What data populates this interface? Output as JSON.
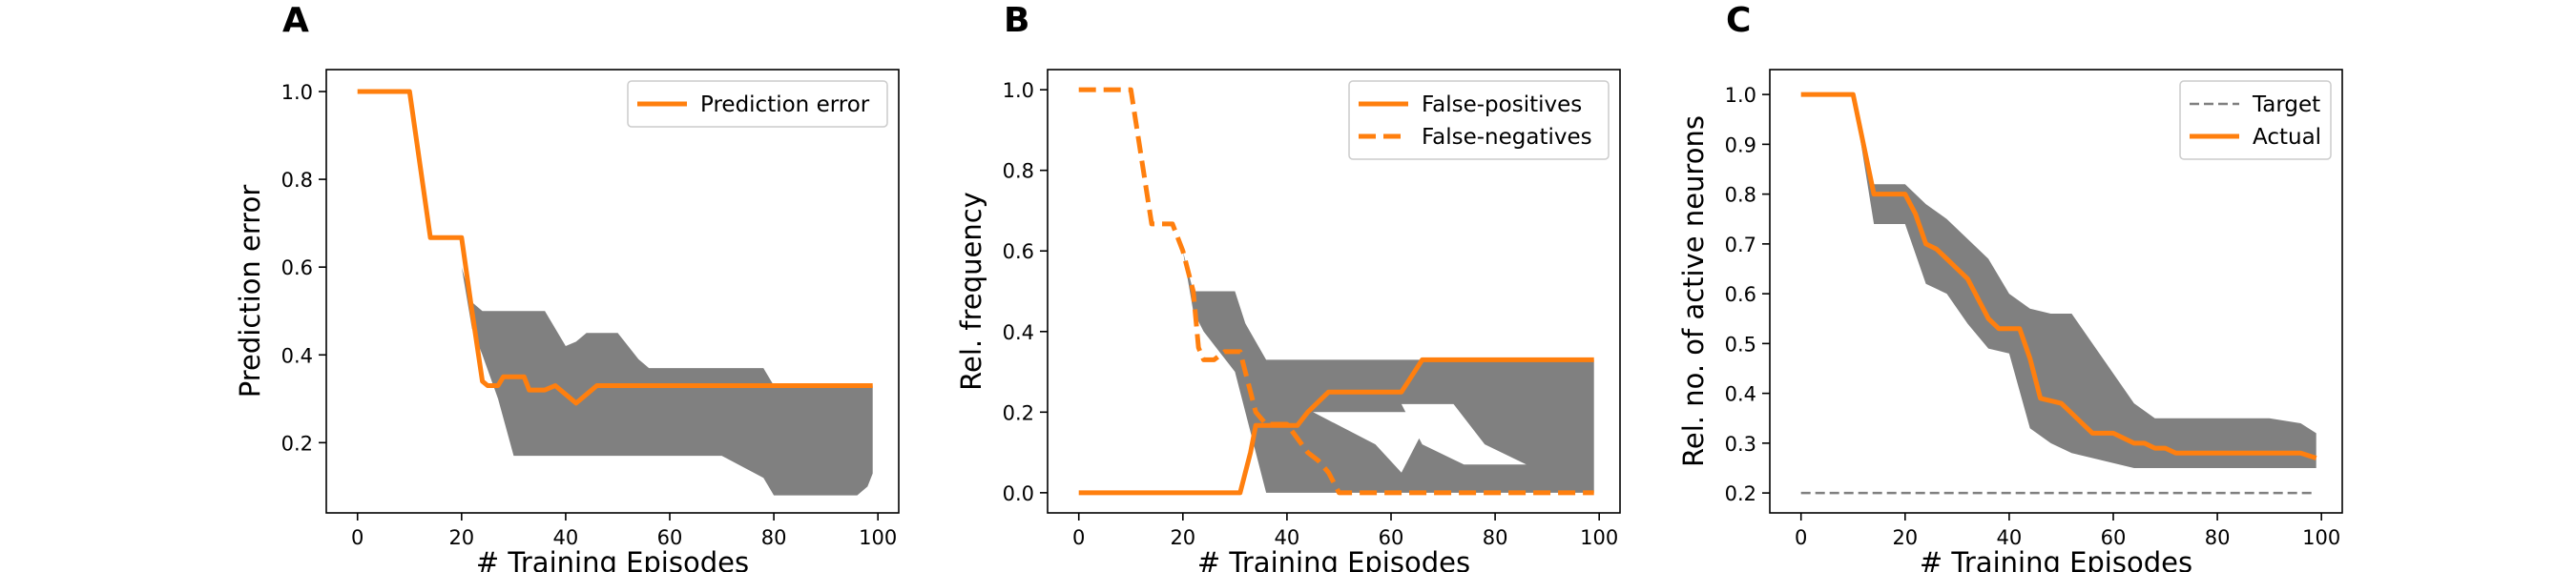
{
  "colors": {
    "line": "#ff7f0e",
    "band": "#808080",
    "target": "#808080"
  },
  "chart_data": [
    {
      "type": "line",
      "panel": "A",
      "xlabel": "# Training Episodes",
      "ylabel": "Prediction error",
      "xlim": [
        -6,
        104
      ],
      "ylim": [
        0.04,
        1.05
      ],
      "xticks": [
        0,
        20,
        40,
        60,
        80,
        100
      ],
      "yticks": [
        0.2,
        0.4,
        0.6,
        0.8,
        1.0
      ],
      "ytick_labels": [
        "0.2",
        "0.4",
        "0.6",
        "0.8",
        "1.0"
      ],
      "legend_position": "top-right",
      "series": [
        {
          "name": "Prediction error",
          "style": "solid",
          "x": [
            0,
            10,
            14,
            20,
            22,
            24,
            25,
            27,
            28,
            30,
            32,
            33,
            36,
            38,
            40,
            42,
            44,
            46,
            48,
            50,
            60,
            70,
            80,
            90,
            99
          ],
          "y": [
            1.0,
            1.0,
            0.667,
            0.667,
            0.5,
            0.34,
            0.33,
            0.33,
            0.35,
            0.35,
            0.35,
            0.32,
            0.32,
            0.33,
            0.31,
            0.29,
            0.31,
            0.33,
            0.33,
            0.33,
            0.33,
            0.33,
            0.33,
            0.33,
            0.33
          ]
        }
      ],
      "bands": [
        {
          "x": [
            20,
            22,
            24,
            27,
            30,
            36,
            38,
            40,
            42,
            44,
            46,
            50,
            54,
            56,
            58,
            60,
            66,
            70,
            78,
            80,
            86,
            90,
            96,
            98,
            99
          ],
          "upper": [
            0.6,
            0.52,
            0.5,
            0.5,
            0.5,
            0.5,
            0.46,
            0.42,
            0.43,
            0.45,
            0.45,
            0.45,
            0.39,
            0.37,
            0.37,
            0.37,
            0.37,
            0.37,
            0.37,
            0.33,
            0.33,
            0.33,
            0.33,
            0.33,
            0.33
          ],
          "lower": [
            0.6,
            0.46,
            0.4,
            0.3,
            0.17,
            0.17,
            0.17,
            0.17,
            0.17,
            0.17,
            0.17,
            0.17,
            0.17,
            0.17,
            0.17,
            0.17,
            0.17,
            0.17,
            0.12,
            0.08,
            0.08,
            0.08,
            0.08,
            0.1,
            0.13
          ]
        }
      ]
    },
    {
      "type": "line",
      "panel": "B",
      "xlabel": "# Training Episodes",
      "ylabel": "Rel. frequency",
      "xlim": [
        -6,
        104
      ],
      "ylim": [
        -0.05,
        1.05
      ],
      "xticks": [
        0,
        20,
        40,
        60,
        80,
        100
      ],
      "yticks": [
        0.0,
        0.2,
        0.4,
        0.6,
        0.8,
        1.0
      ],
      "ytick_labels": [
        "0.0",
        "0.2",
        "0.4",
        "0.6",
        "0.8",
        "1.0"
      ],
      "legend_position": "top-right",
      "series": [
        {
          "name": "False-positives",
          "style": "solid",
          "x": [
            0,
            10,
            20,
            30,
            31,
            33,
            34,
            36,
            40,
            42,
            44,
            48,
            50,
            60,
            62,
            64,
            66,
            70,
            80,
            90,
            99
          ],
          "y": [
            0,
            0,
            0,
            0,
            0,
            0.1,
            0.167,
            0.167,
            0.167,
            0.167,
            0.2,
            0.25,
            0.25,
            0.25,
            0.25,
            0.29,
            0.33,
            0.33,
            0.33,
            0.33,
            0.33
          ]
        },
        {
          "name": "False-negatives",
          "style": "dashed",
          "x": [
            0,
            10,
            14,
            18,
            20,
            22,
            23,
            24,
            26,
            28,
            30,
            31,
            34,
            36,
            38,
            40,
            44,
            46,
            48,
            50,
            52,
            60,
            70,
            80,
            90,
            99
          ],
          "y": [
            1.0,
            1.0,
            0.667,
            0.667,
            0.6,
            0.5,
            0.36,
            0.33,
            0.33,
            0.35,
            0.35,
            0.35,
            0.2,
            0.17,
            0.17,
            0.17,
            0.1,
            0.08,
            0.05,
            0.0,
            0.0,
            0.0,
            0.0,
            0.0,
            0.0,
            0.0
          ]
        }
      ],
      "bands": [
        {
          "x": [
            20,
            22,
            24,
            30,
            32,
            36,
            40,
            50,
            60,
            80,
            96,
            98,
            99
          ],
          "upper": [
            0.6,
            0.5,
            0.5,
            0.5,
            0.42,
            0.33,
            0.33,
            0.33,
            0.33,
            0.33,
            0.33,
            0.33,
            0.33
          ],
          "lower": [
            0.6,
            0.45,
            0.4,
            0.3,
            0.2,
            0.0,
            0.0,
            0.0,
            0.0,
            0.0,
            0.0,
            0.0,
            0.0
          ]
        }
      ],
      "band_holes": [
        {
          "x": [
            45,
            57,
            62,
            66,
            70
          ],
          "y": [
            0.2,
            0.12,
            0.05,
            0.15,
            0.2
          ]
        },
        {
          "x": [
            62,
            72,
            78,
            86,
            74,
            66
          ],
          "y": [
            0.22,
            0.22,
            0.12,
            0.07,
            0.07,
            0.12
          ]
        }
      ]
    },
    {
      "type": "line",
      "panel": "C",
      "xlabel": "# Training Episodes",
      "ylabel": "Rel. no. of active neurons",
      "xlim": [
        -6,
        104
      ],
      "ylim": [
        0.16,
        1.05
      ],
      "xticks": [
        0,
        20,
        40,
        60,
        80,
        100
      ],
      "yticks": [
        0.2,
        0.3,
        0.4,
        0.5,
        0.6,
        0.7,
        0.8,
        0.9,
        1.0
      ],
      "ytick_labels": [
        "0.2",
        "0.3",
        "0.4",
        "0.5",
        "0.6",
        "0.7",
        "0.8",
        "0.9",
        "1.0"
      ],
      "legend_position": "top-right",
      "series": [
        {
          "name": "Target",
          "style": "dashed-thin",
          "color_key": "target",
          "x": [
            0,
            99
          ],
          "y": [
            0.2,
            0.2
          ]
        },
        {
          "name": "Actual",
          "style": "solid",
          "x": [
            0,
            10,
            14,
            20,
            22,
            24,
            26,
            28,
            30,
            32,
            34,
            36,
            38,
            42,
            44,
            46,
            50,
            52,
            54,
            56,
            60,
            64,
            66,
            68,
            70,
            72,
            80,
            90,
            96,
            99
          ],
          "y": [
            1.0,
            1.0,
            0.8,
            0.8,
            0.76,
            0.7,
            0.69,
            0.67,
            0.65,
            0.63,
            0.59,
            0.55,
            0.53,
            0.53,
            0.47,
            0.39,
            0.38,
            0.36,
            0.34,
            0.32,
            0.32,
            0.3,
            0.3,
            0.29,
            0.29,
            0.28,
            0.28,
            0.28,
            0.28,
            0.27
          ]
        }
      ],
      "bands": [
        {
          "x": [
            10,
            14,
            20,
            24,
            28,
            32,
            36,
            40,
            44,
            48,
            52,
            56,
            60,
            64,
            68,
            70,
            72,
            80,
            90,
            96,
            99
          ],
          "upper": [
            1.0,
            0.82,
            0.82,
            0.78,
            0.75,
            0.71,
            0.67,
            0.6,
            0.57,
            0.56,
            0.56,
            0.5,
            0.44,
            0.38,
            0.35,
            0.35,
            0.35,
            0.35,
            0.35,
            0.34,
            0.32
          ],
          "lower": [
            1.0,
            0.74,
            0.74,
            0.62,
            0.6,
            0.54,
            0.49,
            0.48,
            0.33,
            0.3,
            0.28,
            0.27,
            0.26,
            0.25,
            0.25,
            0.25,
            0.25,
            0.25,
            0.25,
            0.25,
            0.25
          ]
        }
      ]
    }
  ]
}
